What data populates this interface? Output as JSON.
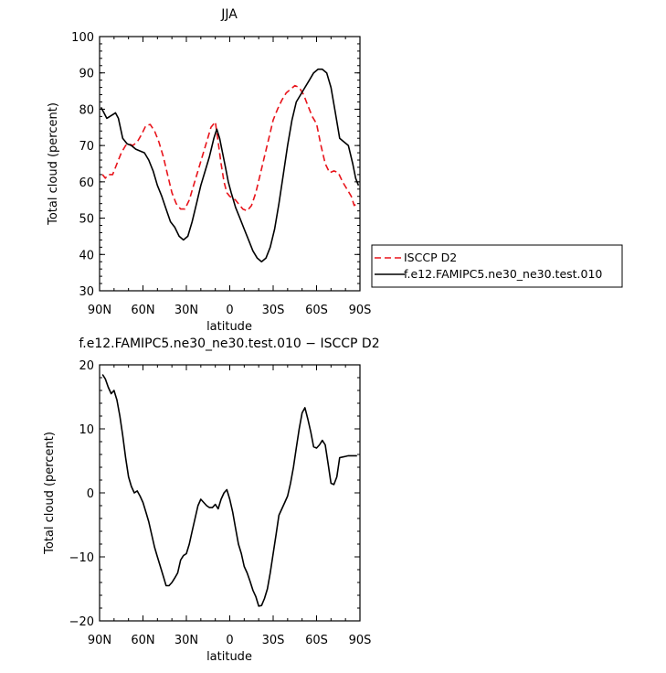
{
  "chart_data": [
    {
      "type": "line",
      "title": "JJA",
      "xlabel": "latitude",
      "ylabel": "Total cloud (percent)",
      "xlim": [
        90,
        -90
      ],
      "ylim": [
        30,
        100
      ],
      "x_tick_labels": [
        "90N",
        "60N",
        "30N",
        "0",
        "30S",
        "60S",
        "90S"
      ],
      "y_tick_labels": [
        "30",
        "40",
        "50",
        "60",
        "70",
        "80",
        "90",
        "100"
      ],
      "x_ticks": [
        90,
        60,
        30,
        0,
        -30,
        -60,
        -90
      ],
      "y_ticks": [
        30,
        40,
        50,
        60,
        70,
        80,
        90,
        100
      ],
      "legend": {
        "position": "right",
        "entries": [
          "ISCCP D2",
          "f.e12.FAMIPC5.ne30_ne30.test.010"
        ]
      },
      "series": [
        {
          "name": "ISCCP D2",
          "color": "#e8141b",
          "dash": "dashed",
          "x": [
            88,
            86,
            84,
            81,
            78,
            75,
            72,
            70,
            67,
            64,
            61,
            58,
            55,
            52,
            49,
            46,
            43,
            40,
            37,
            34,
            31,
            28,
            25,
            22,
            19,
            16,
            13,
            10,
            8,
            6,
            4,
            2,
            0,
            -2,
            -4,
            -6,
            -9,
            -12,
            -15,
            -18,
            -21,
            -24,
            -27,
            -30,
            -33,
            -36,
            -39,
            -42,
            -45,
            -48,
            -51,
            -54,
            -57,
            -60,
            -63,
            -66,
            -69,
            -72,
            -75,
            -78,
            -81,
            -84,
            -86,
            -88
          ],
          "y": [
            62,
            61,
            62,
            62,
            65,
            68,
            70,
            70.5,
            70,
            71,
            73,
            75.5,
            75.8,
            74,
            71,
            67,
            62,
            57,
            54,
            52.5,
            52.5,
            55,
            59,
            63,
            67,
            71,
            75,
            76.5,
            71,
            65,
            60,
            57,
            56,
            55.5,
            55,
            54,
            52.5,
            52,
            53.5,
            57,
            62,
            67,
            72,
            77,
            80,
            82.5,
            84.5,
            85.5,
            86.5,
            86,
            84,
            81,
            78,
            76,
            70,
            65,
            62.5,
            63,
            62.5,
            60,
            58,
            56,
            53.5,
            54
          ]
        },
        {
          "name": "f.e12.FAMIPC5.ne30_ne30.test.010",
          "color": "#000000",
          "dash": "solid",
          "x": [
            89,
            87,
            85,
            83,
            81,
            79,
            77,
            74,
            71,
            68,
            65,
            62,
            59,
            56,
            53,
            50,
            47,
            44,
            41,
            38,
            35,
            32,
            29,
            26,
            23,
            20,
            17,
            14,
            11,
            9,
            7,
            5,
            3,
            1,
            -1,
            -4,
            -7,
            -10,
            -13,
            -16,
            -19,
            -22,
            -25,
            -28,
            -31,
            -34,
            -37,
            -40,
            -43,
            -46,
            -49,
            -52,
            -55,
            -58,
            -61,
            -64,
            -67,
            -70,
            -73,
            -76,
            -79,
            -82,
            -85,
            -87,
            -89
          ],
          "y": [
            80.5,
            79,
            77.5,
            78,
            78.5,
            79,
            77.5,
            72,
            70.5,
            70,
            69,
            68.5,
            68,
            66,
            63,
            59,
            56,
            52.5,
            49,
            47.5,
            45,
            44,
            45,
            49,
            54,
            59,
            63,
            67,
            72,
            74.5,
            72,
            68,
            64,
            60,
            57,
            53,
            50,
            47,
            44,
            41,
            39,
            38,
            39,
            42,
            47,
            54,
            62,
            70,
            77,
            82,
            84,
            86,
            88,
            90,
            91,
            91,
            90,
            86,
            79,
            72,
            71,
            70,
            65,
            61,
            59
          ]
        }
      ]
    },
    {
      "type": "line",
      "title": "f.e12.FAMIPC5.ne30_ne30.test.010 − ISCCP D2",
      "xlabel": "latitude",
      "ylabel": "Total cloud (percent)",
      "xlim": [
        90,
        -90
      ],
      "ylim": [
        -20,
        20
      ],
      "x_tick_labels": [
        "90N",
        "60N",
        "30N",
        "0",
        "30S",
        "60S",
        "90S"
      ],
      "y_tick_labels": [
        "−20",
        "−10",
        "0",
        "10",
        "20"
      ],
      "x_ticks": [
        90,
        60,
        30,
        0,
        -30,
        -60,
        -90
      ],
      "y_ticks": [
        -20,
        -10,
        0,
        10,
        20
      ],
      "series": [
        {
          "color": "#000000",
          "dash": "solid",
          "x": [
            88,
            86,
            84,
            82,
            80,
            78,
            76,
            74,
            72,
            70,
            68,
            66,
            64,
            62,
            60,
            58,
            56,
            54,
            52,
            50,
            48,
            46,
            44,
            42,
            40,
            38,
            36,
            34,
            32,
            30,
            28,
            26,
            24,
            22,
            20,
            18,
            16,
            14,
            12,
            10,
            8,
            6,
            4,
            2,
            0,
            -2,
            -4,
            -6,
            -8,
            -10,
            -12,
            -14,
            -16,
            -18,
            -20,
            -22,
            -24,
            -26,
            -28,
            -30,
            -32,
            -34,
            -36,
            -38,
            -40,
            -42,
            -44,
            -46,
            -48,
            -50,
            -52,
            -54,
            -56,
            -58,
            -60,
            -62,
            -64,
            -66,
            -68,
            -70,
            -72,
            -74,
            -76,
            -78,
            -80,
            -82,
            -84,
            -86,
            -88
          ],
          "y": [
            18.5,
            17.8,
            16.5,
            15.5,
            16,
            14.5,
            12,
            9,
            5.5,
            2.5,
            1,
            0,
            0.3,
            -0.5,
            -1.5,
            -3,
            -4.5,
            -6.5,
            -8.5,
            -10,
            -11.5,
            -13,
            -14.5,
            -14.5,
            -14,
            -13.3,
            -12.5,
            -10.5,
            -9.8,
            -9.5,
            -8,
            -6,
            -4,
            -2,
            -1,
            -1.5,
            -2,
            -2.3,
            -2.3,
            -1.8,
            -2.5,
            -1,
            0,
            0.5,
            -1,
            -3,
            -5.5,
            -8,
            -9.5,
            -11.5,
            -12.5,
            -13.8,
            -15.2,
            -16.2,
            -17.7,
            -17.6,
            -16.5,
            -15,
            -12.5,
            -9.5,
            -6.5,
            -3.5,
            -2.5,
            -1.5,
            -0.5,
            1.5,
            4,
            7,
            10,
            12.5,
            13.3,
            11.5,
            9.5,
            7.2,
            7,
            7.5,
            8.2,
            7.5,
            4.5,
            1.5,
            1.3,
            2.5,
            5.5,
            5.6,
            5.7,
            5.8,
            5.8,
            5.8,
            5.8
          ]
        }
      ]
    }
  ]
}
